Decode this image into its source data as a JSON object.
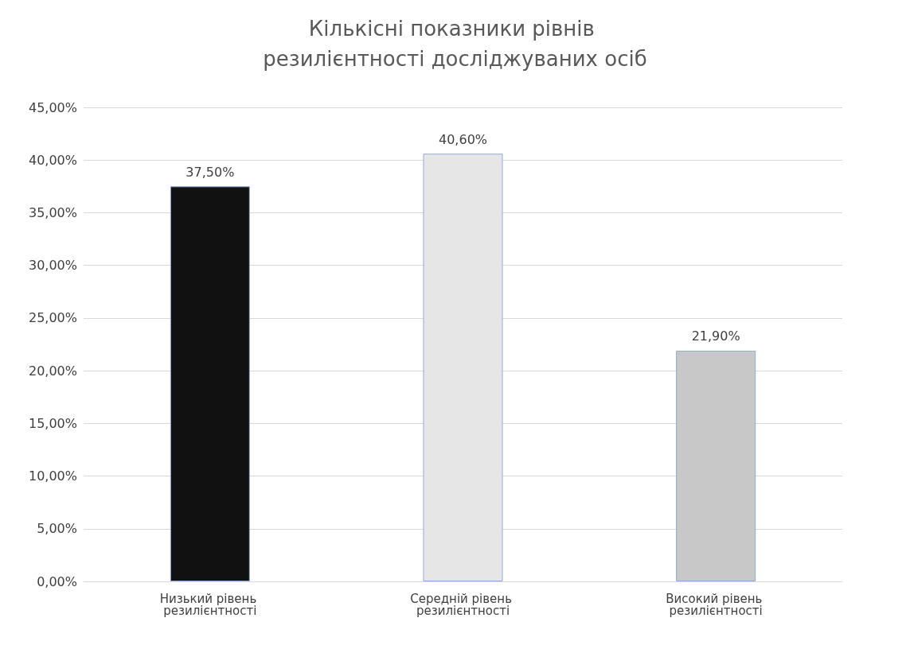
{
  "chart_data": {
    "type": "bar",
    "title": "Кількісні показники рівнів резилієнтності досліджуваних осіб",
    "categories": [
      "Низький рівень резилієнтності",
      "Середній рівень резилієнтності",
      "Високий рівень резилієнтності"
    ],
    "values": [
      37.5,
      40.6,
      21.9
    ],
    "colors": [
      "#111111",
      "#e6e6e6",
      "#c8c8c8"
    ],
    "value_labels": [
      "37,50%",
      "40,60%",
      "21,90%"
    ],
    "ylim": [
      0,
      45
    ],
    "yticks": [
      {
        "value": 0,
        "label": "0,00%"
      },
      {
        "value": 5,
        "label": "5,00%"
      },
      {
        "value": 10,
        "label": "10,00%"
      },
      {
        "value": 15,
        "label": "15,00%"
      },
      {
        "value": 20,
        "label": "20,00%"
      },
      {
        "value": 25,
        "label": "25,00%"
      },
      {
        "value": 30,
        "label": "30,00%"
      },
      {
        "value": 35,
        "label": "35,00%"
      },
      {
        "value": 40,
        "label": "40,00%"
      },
      {
        "value": 45,
        "label": "45,00%"
      }
    ],
    "grid": "y"
  }
}
